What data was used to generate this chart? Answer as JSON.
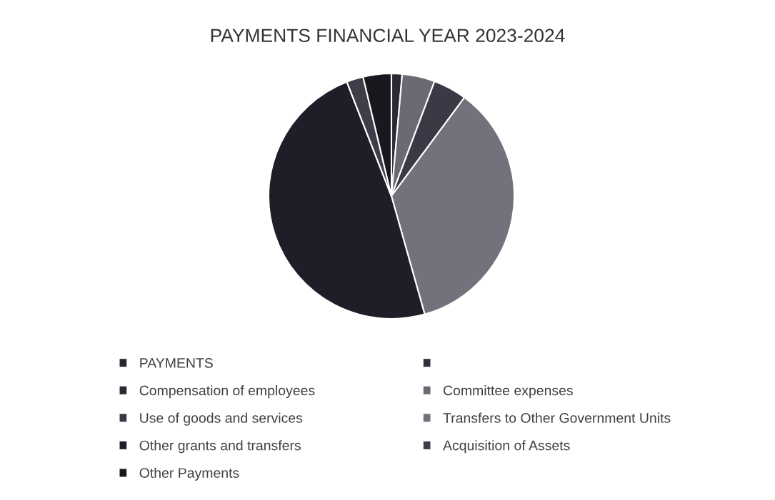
{
  "chart_data": {
    "type": "pie",
    "title": "PAYMENTS FINANCIAL YEAR 2023-2024",
    "categories": [
      "PAYMENTS",
      null,
      "Compensation of employees",
      "Committee expenses",
      "Use of goods and services",
      "Transfers to Other Government Units",
      "Other grants and transfers",
      "Acquisition of Assets",
      "Other Payments"
    ],
    "values": [
      0,
      0,
      1.4,
      4.3,
      4.4,
      35.4,
      48.3,
      2.2,
      3.7
    ],
    "colors": [
      "#26262e",
      "#30303a",
      "#2a2a35",
      "#6a6a74",
      "#3a3a46",
      "#72727c",
      "#1e1e28",
      "#3e3e4a",
      "#18181f"
    ],
    "legend": "bottom"
  }
}
